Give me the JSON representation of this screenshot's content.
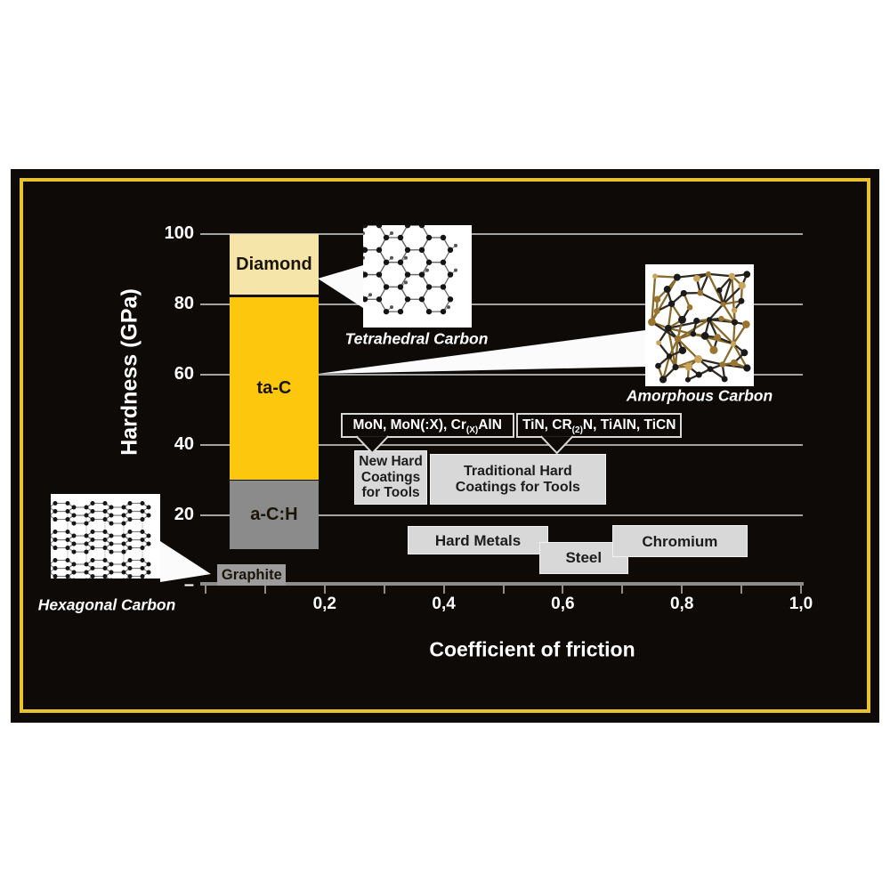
{
  "palette": {
    "page_bg": "#ffffff",
    "panel_bg": "#0d0a08",
    "frame_gold": "#e9c32d",
    "grid_line": "#a3a3a3",
    "axis_line": "#8c8c8c",
    "tick_text": "#ffffff",
    "material_box_bg": "#d8d8d8",
    "material_box_border": "#f2f2f2",
    "material_box_text": "#1c1c1c",
    "callout_bg": "#0d0a08",
    "callout_border": "#d8d8d8",
    "callout_text": "#ffffff",
    "bar_label_text": "#1b1508",
    "diamond_fill": "#f6e5a9",
    "ta_c_fill": "#fcc70d",
    "a_c_h_fill": "#8b8b8b",
    "graphite_fill": "#9c9c9c"
  },
  "structures": [
    {
      "id": "tetrahedral",
      "caption": "Tetrahedral Carbon"
    },
    {
      "id": "amorphous",
      "caption": "Amorphous Carbon"
    },
    {
      "id": "hexagonal",
      "caption": "Hexagonal Carbon"
    }
  ],
  "chart_data": {
    "type": "bar",
    "title": "",
    "x_axis": {
      "label": "Coefficient of friction",
      "range": [
        0,
        1.0
      ],
      "minor_tick_step": 0.1,
      "labeled_ticks": [
        {
          "v": 0.2,
          "t": "0,2"
        },
        {
          "v": 0.4,
          "t": "0,4"
        },
        {
          "v": 0.6,
          "t": "0,6"
        },
        {
          "v": 0.8,
          "t": "0,8"
        },
        {
          "v": 1.0,
          "t": "1,0"
        }
      ]
    },
    "y_axis": {
      "label": "Hardness (GPa)",
      "range": [
        0,
        106
      ],
      "ticks": [
        {
          "v": 100,
          "t": "100"
        },
        {
          "v": 80,
          "t": "80"
        },
        {
          "v": 60,
          "t": "60"
        },
        {
          "v": 40,
          "t": "40"
        },
        {
          "v": 20,
          "t": "20"
        },
        {
          "v": 0,
          "t": "–"
        }
      ]
    },
    "grid": "horizontal",
    "carbon_allotropes": [
      {
        "label": "Diamond",
        "hardness_gpa": [
          82,
          100
        ],
        "friction": [
          0.04,
          0.19
        ],
        "color": "#f6e5a9"
      },
      {
        "label": "ta-C",
        "hardness_gpa": [
          30,
          82
        ],
        "friction": [
          0.04,
          0.19
        ],
        "color": "#fcc70d"
      },
      {
        "label": "a-C:H",
        "hardness_gpa": [
          10.5,
          30
        ],
        "friction": [
          0.04,
          0.19
        ],
        "color": "#8b8b8b"
      },
      {
        "label": "Graphite",
        "hardness_gpa": [
          0,
          6
        ],
        "friction": [
          0.02,
          0.135
        ],
        "color": "#9c9c9c"
      }
    ],
    "materials": [
      {
        "lines": [
          "New Hard",
          "Coatings",
          "for Tools"
        ],
        "friction": [
          0.25,
          0.372
        ],
        "hardness_gpa": [
          23,
          38.5
        ]
      },
      {
        "lines": [
          "Traditional Hard",
          "Coatings for Tools"
        ],
        "friction": [
          0.377,
          0.672
        ],
        "hardness_gpa": [
          23,
          37.5
        ]
      },
      {
        "lines": [
          "Hard Metals"
        ],
        "friction": [
          0.34,
          0.575
        ],
        "hardness_gpa": [
          8.8,
          17
        ]
      },
      {
        "lines": [
          "Steel"
        ],
        "friction": [
          0.56,
          0.71
        ],
        "hardness_gpa": [
          3.2,
          12.5
        ]
      },
      {
        "lines": [
          "Chromium"
        ],
        "friction": [
          0.683,
          0.91
        ],
        "hardness_gpa": [
          8,
          17.3
        ]
      }
    ],
    "coating_callouts": [
      {
        "parts": [
          {
            "t": "MoN, MoN(:X), Cr"
          },
          {
            "t": "(X)",
            "sub": true
          },
          {
            "t": "AlN"
          }
        ],
        "friction": [
          0.227,
          0.518
        ],
        "hardness_gpa": [
          42,
          49
        ],
        "pointer_x": 0.28
      },
      {
        "parts": [
          {
            "t": "TiN, CR"
          },
          {
            "t": "(2)",
            "sub": true
          },
          {
            "t": "N, TiAlN, TiCN"
          }
        ],
        "friction": [
          0.522,
          0.8
        ],
        "hardness_gpa": [
          42,
          49
        ],
        "pointer_x": 0.59
      }
    ]
  }
}
